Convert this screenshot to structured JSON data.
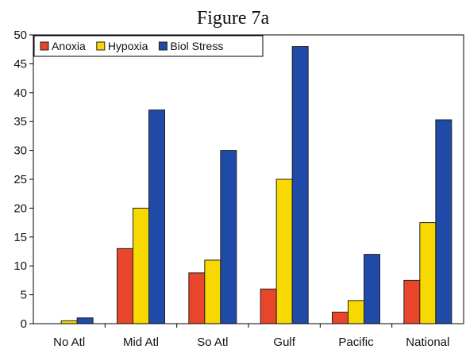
{
  "chart_data": {
    "type": "bar",
    "title": "Figure 7a",
    "categories": [
      "No Atl",
      "Mid Atl",
      "So Atl",
      "Gulf",
      "Pacific",
      "National"
    ],
    "series": [
      {
        "name": "Anoxia",
        "color": "#e8452a",
        "values": [
          0,
          13,
          8.8,
          6,
          2,
          7.5
        ]
      },
      {
        "name": "Hypoxia",
        "color": "#f7d800",
        "values": [
          0.5,
          20,
          11,
          25,
          4,
          17.5
        ]
      },
      {
        "name": "Biol Stress",
        "color": "#1f4aa8",
        "values": [
          1,
          37,
          30,
          48,
          12,
          35.3
        ]
      }
    ],
    "ylim": [
      0,
      50
    ],
    "yticks": [
      0,
      5,
      10,
      15,
      20,
      25,
      30,
      35,
      40,
      45,
      50
    ],
    "xlabel": "",
    "ylabel": "",
    "grid": false,
    "legend": "top-left"
  }
}
